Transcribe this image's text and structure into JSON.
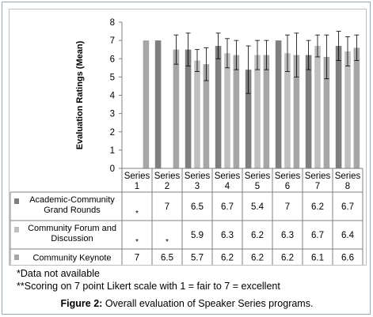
{
  "chart_data": {
    "type": "bar",
    "ylabel": "Evaluation Ratings (Mean)",
    "ylim": [
      0,
      8
    ],
    "yticks": [
      "0",
      "1",
      "2",
      "3",
      "4",
      "5",
      "6",
      "7",
      "8"
    ],
    "categories": [
      "Series 1",
      "Series 2",
      "Series 3",
      "Series 4",
      "Series 5",
      "Series 6",
      "Series 7",
      "Series 8"
    ],
    "category_lines": [
      [
        "Series",
        "1"
      ],
      [
        "Series",
        "2"
      ],
      [
        "Series",
        "3"
      ],
      [
        "Series",
        "4"
      ],
      [
        "Series",
        "5"
      ],
      [
        "Series",
        "6"
      ],
      [
        "Series",
        "7"
      ],
      [
        "Series",
        "8"
      ]
    ],
    "series": [
      {
        "name": "Academic-Community Grand Rounds",
        "name_lines": [
          "Academic-Community",
          "Grand Rounds"
        ],
        "color": "#7f7f7f",
        "values": [
          null,
          7,
          6.5,
          6.7,
          5.4,
          7,
          6.2,
          6.7
        ],
        "labels": [
          "*",
          "7",
          "6.5",
          "6.7",
          "5.4",
          "7",
          "6.2",
          "6.7"
        ],
        "error": [
          null,
          null,
          0.9,
          0.7,
          1.3,
          null,
          0.8,
          0.8
        ]
      },
      {
        "name": "Community Forum and Discussion",
        "name_lines": [
          "Community Forum and",
          "Discussion"
        ],
        "color": "#bfbfbf",
        "values": [
          null,
          null,
          5.9,
          6.3,
          6.2,
          6.3,
          6.7,
          6.4
        ],
        "labels": [
          "*",
          "*",
          "5.9",
          "6.3",
          "6.2",
          "6.3",
          "6.7",
          "6.4"
        ],
        "error": [
          null,
          null,
          0.6,
          0.8,
          0.8,
          1.0,
          0.6,
          0.8
        ]
      },
      {
        "name": "Community Keynote",
        "name_lines": [
          "Community Keynote"
        ],
        "color": "#a6a6a6",
        "values": [
          7,
          6.5,
          5.7,
          6.2,
          6.2,
          6.2,
          6.1,
          6.6
        ],
        "labels": [
          "7",
          "6.5",
          "5.7",
          "6.2",
          "6.2",
          "6.2",
          "6.1",
          "6.6"
        ],
        "error": [
          null,
          0.8,
          0.9,
          0.8,
          0.8,
          1.2,
          1.2,
          0.7
        ]
      }
    ],
    "grid": false,
    "legend": "data-table"
  },
  "notes": {
    "note1": "*Data not available",
    "note2": "**Scoring on 7 point Likert scale with 1 = fair to 7 = excellent"
  },
  "caption": {
    "label": "Figure 2:",
    "text": " Overall evaluation of Speaker Series programs."
  }
}
